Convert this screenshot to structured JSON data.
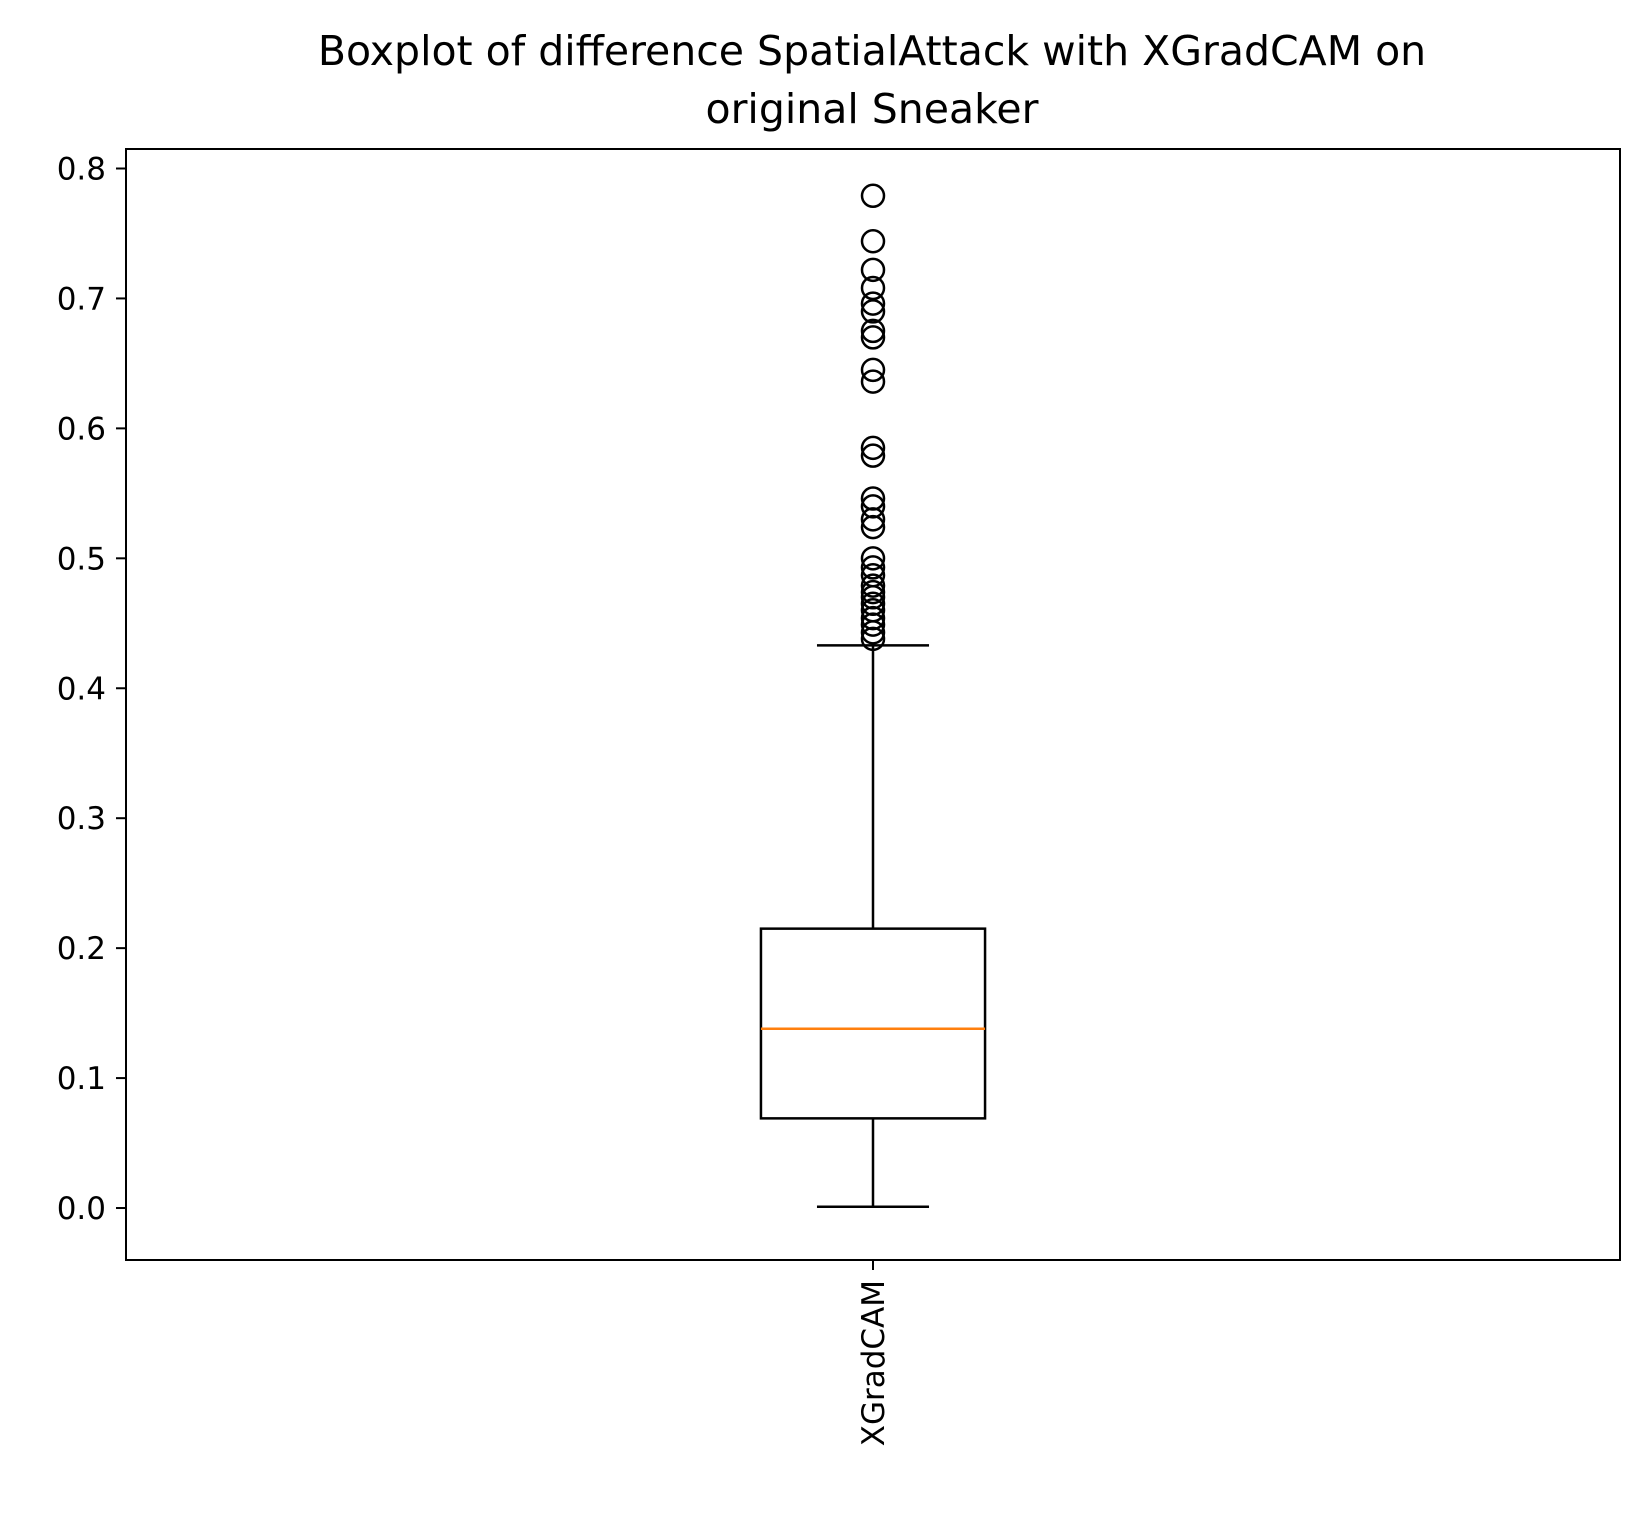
{
  "chart_data": {
    "type": "box",
    "title": [
      "Boxplot of difference SpatialAttack with XGradCAM on",
      "original Sneaker"
    ],
    "xlabel": "",
    "ylabel": "",
    "categories": [
      "XGradCAM"
    ],
    "ylim": [
      -0.04,
      0.815
    ],
    "yticks": [
      "0.0",
      "0.1",
      "0.2",
      "0.3",
      "0.4",
      "0.5",
      "0.6",
      "0.7",
      "0.8"
    ],
    "grid": false,
    "legend": "none",
    "boxes": [
      {
        "label": "XGradCAM",
        "whisker_low": 0.001,
        "q1": 0.069,
        "median": 0.138,
        "q3": 0.215,
        "whisker_high": 0.433,
        "outliers": [
          0.438,
          0.443,
          0.449,
          0.454,
          0.46,
          0.465,
          0.47,
          0.474,
          0.479,
          0.487,
          0.493,
          0.5,
          0.524,
          0.53,
          0.54,
          0.546,
          0.579,
          0.585,
          0.636,
          0.645,
          0.67,
          0.675,
          0.69,
          0.696,
          0.708,
          0.722,
          0.744,
          0.779
        ]
      }
    ],
    "colors": {
      "box": "#000000",
      "median": "#ff7f0e",
      "outlier_edge": "#000000"
    }
  }
}
